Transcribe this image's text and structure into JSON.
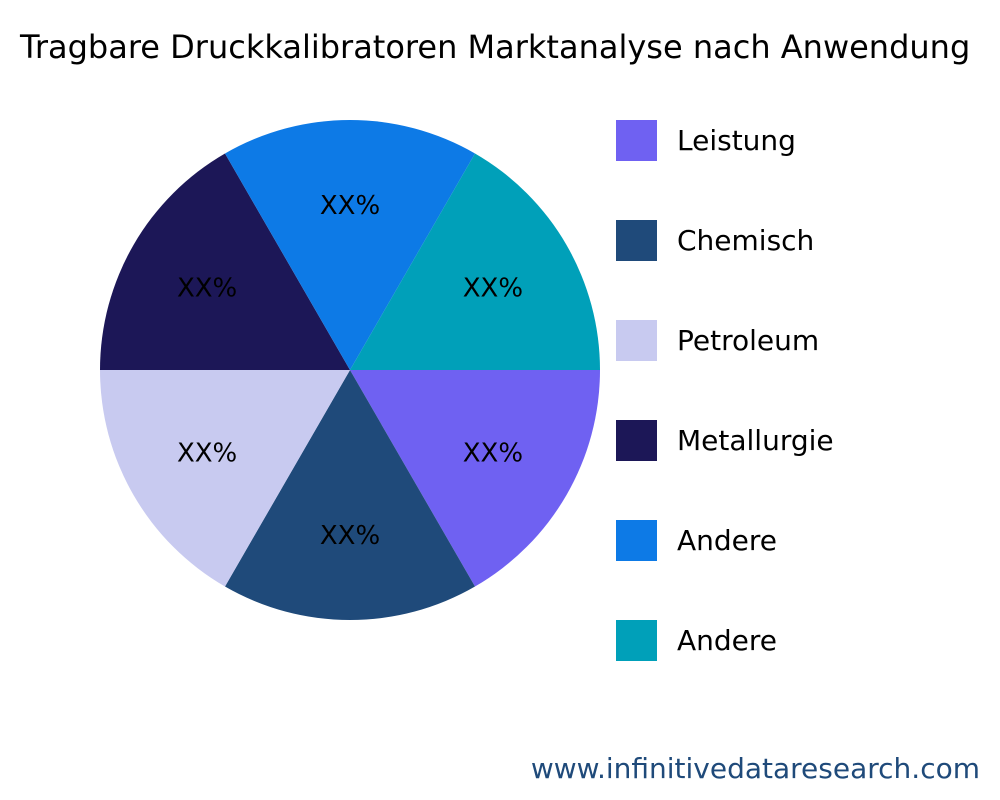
{
  "chart_data": {
    "type": "pie",
    "title": "Tragbare Druckkalibratoren Marktanalyse nach Anwendung",
    "slices": [
      {
        "name": "Leistung",
        "value": 1,
        "label": "XX%",
        "color": "#6F61F2"
      },
      {
        "name": "Chemisch",
        "value": 1,
        "label": "XX%",
        "color": "#1F4A7A"
      },
      {
        "name": "Petroleum",
        "value": 1,
        "label": "XX%",
        "color": "#C8CAF0"
      },
      {
        "name": "Metallurgie",
        "value": 1,
        "label": "XX%",
        "color": "#1C1757"
      },
      {
        "name": "Andere",
        "value": 1,
        "label": "XX%",
        "color": "#0D7AE6"
      },
      {
        "name": "Andere",
        "value": 1,
        "label": "XX%",
        "color": "#00A0B9"
      }
    ],
    "legend_position": "right"
  },
  "footer": "www.infinitivedataresearch.com"
}
